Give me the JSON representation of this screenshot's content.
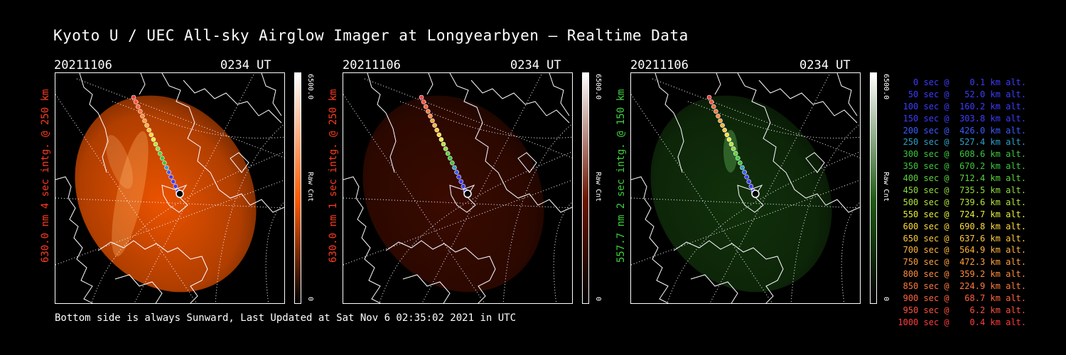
{
  "title": "Kyoto U / UEC All-sky Airglow Imager at Longyearbyen — Realtime Data",
  "panels": [
    {
      "date": "20211106",
      "time": "0234 UT",
      "ylabel": "630.0 nm 4 sec intg. @ 250 km",
      "ylabel_color": "#ff3a1e",
      "cbar_max": "6500.0",
      "cbar_min": "0",
      "cbar_unit": "Raw Cnt",
      "tint": "#ff5a00",
      "glow_opacity": 0.92
    },
    {
      "date": "20211106",
      "time": "0234 UT",
      "ylabel": "630.0 nm 1 sec intg. @ 250 km",
      "ylabel_color": "#ff3a1e",
      "cbar_max": "6500.0",
      "cbar_min": "0",
      "cbar_unit": "Raw Cnt",
      "tint": "#6a1400",
      "glow_opacity": 0.55
    },
    {
      "date": "20211106",
      "time": "0234 UT",
      "ylabel": "557.7 nm 2 sec intg. @ 150 km",
      "ylabel_color": "#3cd23c",
      "cbar_max": "6500.0",
      "cbar_min": "0",
      "cbar_unit": "Raw Cnt",
      "tint": "#1f5a14",
      "glow_opacity": 0.55
    }
  ],
  "footer": "Bottom side is always Sunward, Last Updated at Sat Nov  6 02:35:02 2021 in UTC",
  "legend": [
    {
      "text": "   0 sec @    0.1 km alt.",
      "color": "#3c3cff"
    },
    {
      "text": "  50 sec @   52.0 km alt.",
      "color": "#3c3cff"
    },
    {
      "text": " 100 sec @  160.2 km alt.",
      "color": "#3c3cff"
    },
    {
      "text": " 150 sec @  303.8 km alt.",
      "color": "#3c3cff"
    },
    {
      "text": " 200 sec @  426.0 km alt.",
      "color": "#3c5aff"
    },
    {
      "text": " 250 sec @  527.4 km alt.",
      "color": "#2ea0c8"
    },
    {
      "text": " 300 sec @  608.6 km alt.",
      "color": "#3cc83c"
    },
    {
      "text": " 350 sec @  670.2 km alt.",
      "color": "#3cc83c"
    },
    {
      "text": " 400 sec @  712.4 km alt.",
      "color": "#5ad23c"
    },
    {
      "text": " 450 sec @  735.5 km alt.",
      "color": "#8cdc3c"
    },
    {
      "text": " 500 sec @  739.6 km alt.",
      "color": "#b4e63c"
    },
    {
      "text": " 550 sec @  724.7 km alt.",
      "color": "#e6f03c"
    },
    {
      "text": " 600 sec @  690.8 km alt.",
      "color": "#ffdc3c"
    },
    {
      "text": " 650 sec @  637.6 km alt.",
      "color": "#ffc83c"
    },
    {
      "text": " 700 sec @  564.9 km alt.",
      "color": "#ffb43c"
    },
    {
      "text": " 750 sec @  472.3 km alt.",
      "color": "#ffa03c"
    },
    {
      "text": " 800 sec @  359.2 km alt.",
      "color": "#ff8c3c"
    },
    {
      "text": " 850 sec @  224.9 km alt.",
      "color": "#ff783c"
    },
    {
      "text": " 900 sec @   68.7 km alt.",
      "color": "#ff643c"
    },
    {
      "text": " 950 sec @    6.2 km alt.",
      "color": "#ff503c"
    },
    {
      "text": "1000 sec @    0.4 km alt.",
      "color": "#ff3c3c"
    }
  ]
}
